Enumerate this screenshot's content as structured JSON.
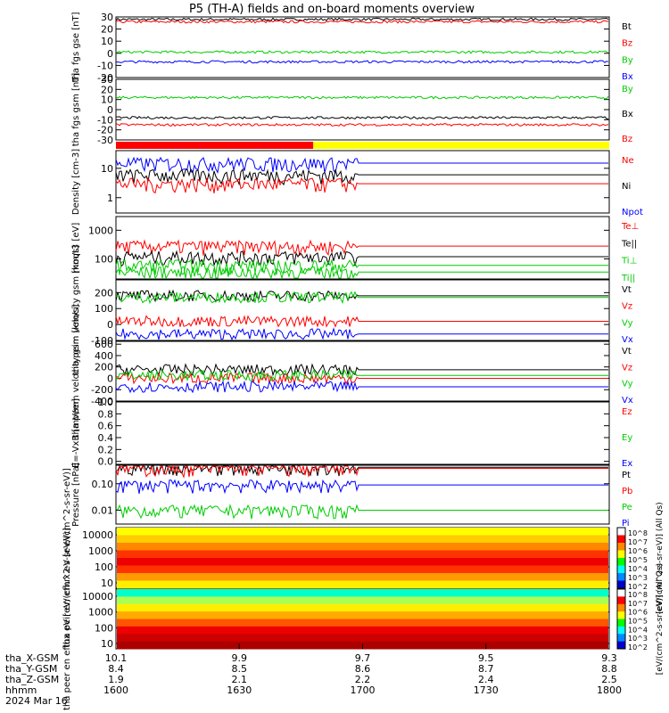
{
  "title": "P5 (TH-A) fields and on-board moments overview",
  "time_axis": {
    "ticks": [
      "1600",
      "1630",
      "1700",
      "1730",
      "1800"
    ],
    "row_labels": [
      "tha_X-GSM",
      "tha_Y-GSM",
      "tha_Z-GSM",
      "hhmm",
      "2024 Mar 16"
    ],
    "x_gsm": [
      "10.1",
      "9.9",
      "9.7",
      "9.5",
      "9.3"
    ],
    "y_gsm": [
      "8.4",
      "8.5",
      "8.6",
      "8.7",
      "8.8"
    ],
    "z_gsm": [
      "1.9",
      "2.1",
      "2.2",
      "2.4",
      "2.5"
    ]
  },
  "mode_bar": {
    "split_fraction": 0.4,
    "left_color": "#ff0000",
    "right_color": "#ffff00"
  },
  "colors": {
    "black": "#000000",
    "red": "#ff0000",
    "green": "#00ff00",
    "blue": "#0000ff",
    "darkred": "#cc0000"
  },
  "colorbars": [
    {
      "label": "[eV/(cm^2-s-sr-eV)] (All Qs)",
      "ticks": [
        "10^8",
        "10^7",
        "10^6",
        "10^5",
        "10^4",
        "10^3",
        "10^2"
      ]
    },
    {
      "label": "[eV/(cm^2-s-sr-eV)] (All Qs)",
      "ticks": [
        "10^8",
        "10^7",
        "10^6",
        "10^5",
        "10^4",
        "10^3",
        "10^2"
      ]
    }
  ],
  "chart_data": [
    {
      "type": "line",
      "ylabel": "tha fgs gse [nT]",
      "ylim": [
        -20,
        30
      ],
      "yticks": [
        "30",
        "20",
        "10",
        "0",
        "-10",
        "-20"
      ],
      "legend": [
        "Bt",
        "Bz",
        "By",
        "Bx"
      ],
      "legend_colors": [
        "#000000",
        "#ff0000",
        "#00cc00",
        "#0000ff"
      ],
      "series": [
        {
          "name": "Bt",
          "level": 28
        },
        {
          "name": "Bz",
          "level": 26
        },
        {
          "name": "By",
          "level": 1
        },
        {
          "name": "Bx",
          "level": -7
        }
      ]
    },
    {
      "type": "line",
      "ylabel": "tha fgs gsm [nT]",
      "ylim": [
        -30,
        30
      ],
      "yticks": [
        "30",
        "20",
        "10",
        "0",
        "-10",
        "-20",
        "-30"
      ],
      "legend": [
        "By",
        "Bx",
        "Bz"
      ],
      "legend_colors": [
        "#00cc00",
        "#000000",
        "#ff0000"
      ],
      "series": [
        {
          "name": "By",
          "level": 12
        },
        {
          "name": "Bx",
          "level": -8
        },
        {
          "name": "Bz",
          "level": -15
        }
      ]
    },
    {
      "type": "line",
      "ylabel": "Density [cm-3]",
      "yscale": "log",
      "ylim": [
        0.3,
        40
      ],
      "yticks": [
        "10",
        "1"
      ],
      "legend": [
        "Ne",
        "Ni",
        "Npot"
      ],
      "legend_colors": [
        "#ff0000",
        "#000000",
        "#0000ff"
      ],
      "series": [
        {
          "name": "Npot",
          "level": 15
        },
        {
          "name": "Ni",
          "level": 6
        },
        {
          "name": "Ne",
          "level": 3
        }
      ]
    },
    {
      "type": "line",
      "ylabel": "moqt3 [eV]",
      "yscale": "log",
      "ylim": [
        20,
        3000
      ],
      "yticks": [
        "1000",
        "100"
      ],
      "legend": [
        "Te⊥",
        "Te||",
        "Ti⊥",
        "Ti||"
      ],
      "legend_colors": [
        "#ff0000",
        "#000000",
        "#00cc00",
        "#00cc00"
      ],
      "series": [
        {
          "name": "Te⊥",
          "level": 280
        },
        {
          "name": "Te||",
          "level": 120
        },
        {
          "name": "Ti⊥",
          "level": 60
        },
        {
          "name": "Ti||",
          "level": 35
        }
      ]
    },
    {
      "type": "line",
      "ylabel": "tha peim velocity gsm [km/s]",
      "ylim": [
        -100,
        280
      ],
      "yticks": [
        "200",
        "100",
        "0",
        "-100"
      ],
      "legend": [
        "Vt",
        "Vz",
        "Vy",
        "Vx"
      ],
      "legend_colors": [
        "#000000",
        "#ff0000",
        "#00cc00",
        "#0000ff"
      ],
      "series": [
        {
          "name": "Vt",
          "level": 180
        },
        {
          "name": "Vz",
          "level": 20
        },
        {
          "name": "Vy",
          "level": 170
        },
        {
          "name": "Vx",
          "level": -60
        }
      ]
    },
    {
      "type": "line",
      "ylabel": "tha peem velocity gsm [km/s]",
      "ylim": [
        -400,
        650
      ],
      "yticks": [
        "600",
        "400",
        "200",
        "0",
        "-200",
        "-400"
      ],
      "legend": [
        "Vt",
        "Vz",
        "Vy",
        "Vx"
      ],
      "legend_colors": [
        "#000000",
        "#ff0000",
        "#00cc00",
        "#0000ff"
      ],
      "series": [
        {
          "name": "Vt",
          "level": 150
        },
        {
          "name": "Vz",
          "level": 0
        },
        {
          "name": "Vy",
          "level": 50
        },
        {
          "name": "Vx",
          "level": -150
        }
      ]
    },
    {
      "type": "line",
      "ylabel": "E=-VxB [mV/m]",
      "ylim": [
        -0.05,
        1.0
      ],
      "yticks": [
        "1.0",
        "0.8",
        "0.6",
        "0.4",
        "0.2",
        "0.0"
      ],
      "legend": [
        "Ez",
        "Ey",
        "Ex"
      ],
      "legend_colors": [
        "#ff0000",
        "#00cc00",
        "#0000ff"
      ],
      "series": []
    },
    {
      "type": "line",
      "ylabel": "Pressure [nPa]",
      "yscale": "log",
      "ylim": [
        0.003,
        0.5
      ],
      "yticks": [
        "0.10",
        "0.01"
      ],
      "legend": [
        "Pt",
        "Pb",
        "Pe",
        "Pi"
      ],
      "legend_colors": [
        "#000000",
        "#ff0000",
        "#00cc00",
        "#0000ff"
      ],
      "series": [
        {
          "name": "Pt",
          "level": 0.42
        },
        {
          "name": "Pb",
          "level": 0.38
        },
        {
          "name": "Pi",
          "level": 0.09
        },
        {
          "name": "Pe",
          "level": 0.01
        }
      ]
    },
    {
      "type": "heatmap",
      "ylabel": "tha peir en eflux eV [eV/(cm^2-s-sr-eV)]",
      "yscale": "log",
      "ylim": [
        5,
        20000
      ],
      "yticks": [
        "10000",
        "1000",
        "100",
        "10"
      ]
    },
    {
      "type": "heatmap",
      "ylabel": "tha peer en eflux eV [eV/(cm^2-s-sr-eV)]",
      "yscale": "log",
      "ylim": [
        5,
        20000
      ],
      "yticks": [
        "10000",
        "1000",
        "100",
        "10"
      ]
    }
  ]
}
